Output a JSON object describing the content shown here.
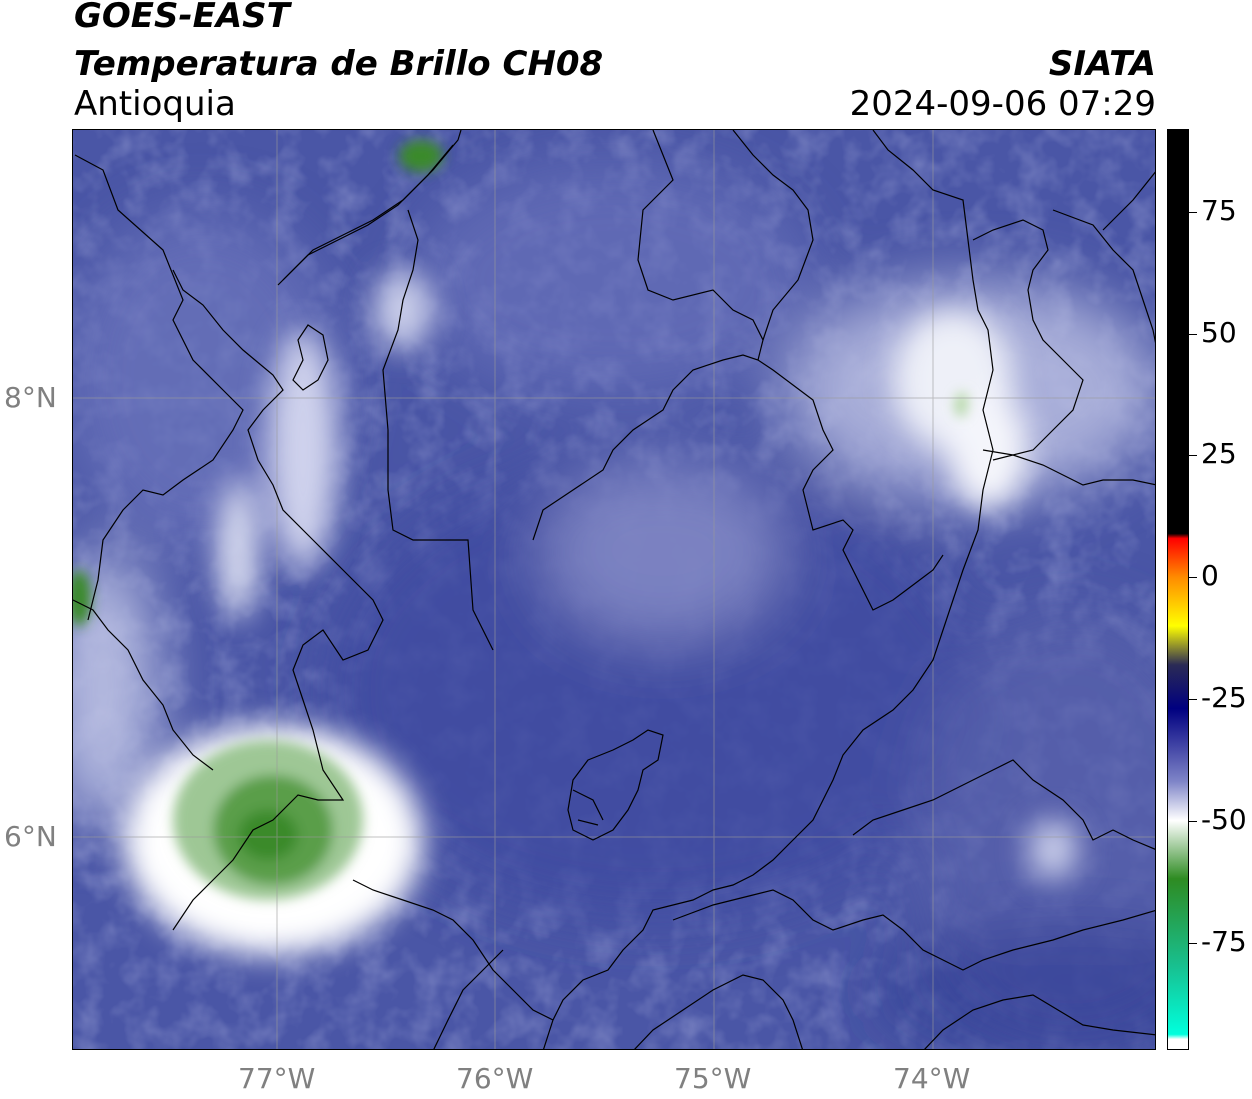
{
  "header": {
    "satellite": "GOES-EAST",
    "product": "Temperatura de Brillo CH08",
    "region": "Antioquia",
    "organization": "SIATA",
    "timestamp": "2024-09-06 07:29"
  },
  "map": {
    "lat_labels": [
      "8°N",
      "6°N"
    ],
    "lon_labels": [
      "77°W",
      "76°W",
      "75°W",
      "74°W"
    ],
    "gridline_color": "#999999",
    "background_color": "#4a56a6"
  },
  "colorbar": {
    "tick_labels": [
      "75",
      "50",
      "25",
      "0",
      "-25",
      "-50",
      "-75"
    ],
    "ticks": [
      75,
      50,
      25,
      0,
      -25,
      -50,
      -75
    ],
    "range": [
      -97,
      92
    ],
    "stops": [
      {
        "v": 92,
        "c": "#000000"
      },
      {
        "v": 9,
        "c": "#000000"
      },
      {
        "v": 8,
        "c": "#ff0000"
      },
      {
        "v": 0,
        "c": "#ff8c00"
      },
      {
        "v": -10,
        "c": "#ffff00"
      },
      {
        "v": -18,
        "c": "#2b2b55"
      },
      {
        "v": -27,
        "c": "#000080"
      },
      {
        "v": -42,
        "c": "#7f85c8"
      },
      {
        "v": -50,
        "c": "#ffffff"
      },
      {
        "v": -62,
        "c": "#2e8b22"
      },
      {
        "v": -80,
        "c": "#18c090"
      },
      {
        "v": -94,
        "c": "#00ffdd"
      },
      {
        "v": -95,
        "c": "#ffffff"
      },
      {
        "v": -97,
        "c": "#ffffff"
      }
    ]
  }
}
